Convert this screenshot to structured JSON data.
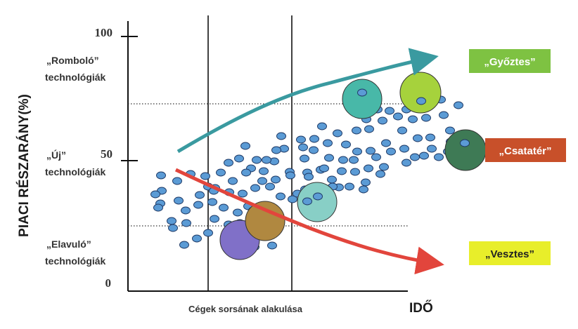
{
  "y_axis": {
    "label": "PIACI RÉSZARÁNY(%)",
    "ticks": [
      "100",
      "50",
      "0"
    ]
  },
  "x_axis": {
    "label": "IDŐ",
    "caption": "Cégek sorsának alakulása"
  },
  "left_labels": {
    "destructive": [
      "„Romboló”",
      "technológiák"
    ],
    "new": [
      "„Új”",
      "technológiák"
    ],
    "obsolete": [
      "„Elavuló”",
      "technológiák"
    ]
  },
  "outcomes": {
    "winner": {
      "label": "„Győztes”",
      "bg": "#7ec242",
      "fg": "#ffffff"
    },
    "battlefield": {
      "label": "„Csatatér”",
      "bg": "#c8502a",
      "fg": "#ffffff"
    },
    "loser": {
      "label": "„Vesztes”",
      "bg": "#e8ee2a",
      "fg": "#222222"
    }
  },
  "colors": {
    "dot_fill": "#5b9bd5",
    "dot_stroke": "#1f3a66",
    "rising_arrow": "#3a9aa0",
    "falling_arrow": "#e2453c",
    "bubble_purple": "#8070c8",
    "bubble_brown": "#b08840",
    "bubble_teal_light": "#88cfc6",
    "bubble_teal": "#48b8a8",
    "bubble_lime": "#a6d23c",
    "bubble_darkgreen": "#3e7a55"
  }
}
